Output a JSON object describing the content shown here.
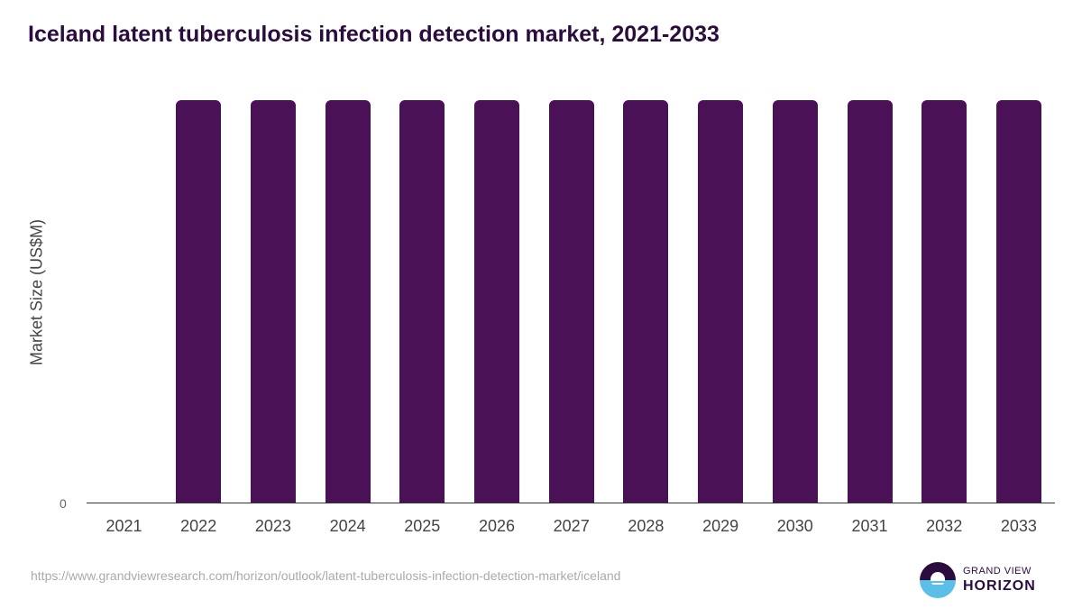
{
  "chart_data": {
    "type": "bar",
    "title": "Iceland latent tuberculosis infection detection market, 2021-2033",
    "xlabel": "",
    "ylabel": "Market Size (US$M)",
    "categories": [
      "2021",
      "2022",
      "2023",
      "2024",
      "2025",
      "2026",
      "2027",
      "2028",
      "2029",
      "2030",
      "2031",
      "2032",
      "2033"
    ],
    "values": [
      0,
      1,
      1,
      1,
      1,
      1,
      1,
      1,
      1,
      1,
      1,
      1,
      1
    ],
    "y_ticks": [
      "0"
    ],
    "ylim": [
      0,
      1
    ],
    "grid": false,
    "legend": null,
    "bar_color": "#4b1157",
    "note": "No numeric values labeled; 2021 bar is zero/absent, 2022-2033 bars are equal full height"
  },
  "footer": {
    "url": "https://www.grandviewresearch.com/horizon/outlook/latent-tuberculosis-infection-detection-market/iceland",
    "logo_line1": "GRAND VIEW",
    "logo_line2": "HORIZON"
  }
}
